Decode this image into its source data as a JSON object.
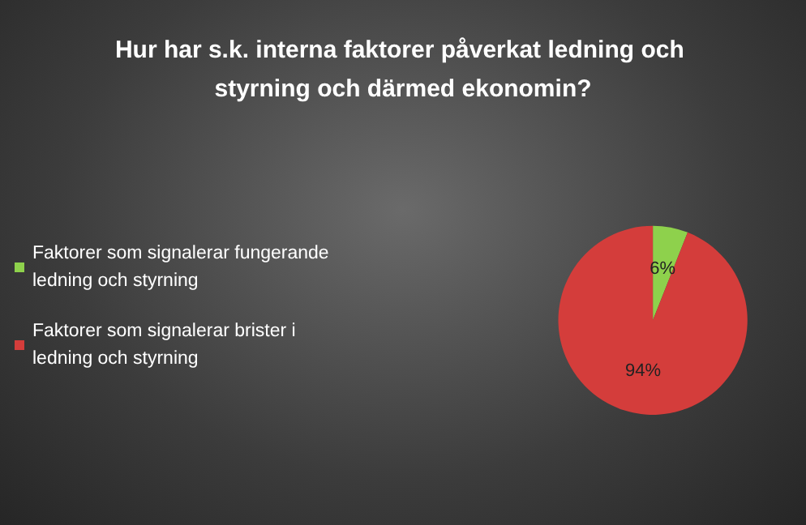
{
  "chart_data": {
    "type": "pie",
    "title": "Hur har s.k. interna faktorer påverkat ledning och styrning och därmed ekonomin?",
    "categories": [
      "Faktorer som signalerar fungerande ledning och styrning",
      "Faktorer som signalerar brister i ledning och styrning"
    ],
    "values": [
      6,
      94
    ],
    "colors": [
      "#8ed14c",
      "#d43d3b"
    ],
    "value_labels": [
      "6%",
      "94%"
    ],
    "legend": "left"
  }
}
